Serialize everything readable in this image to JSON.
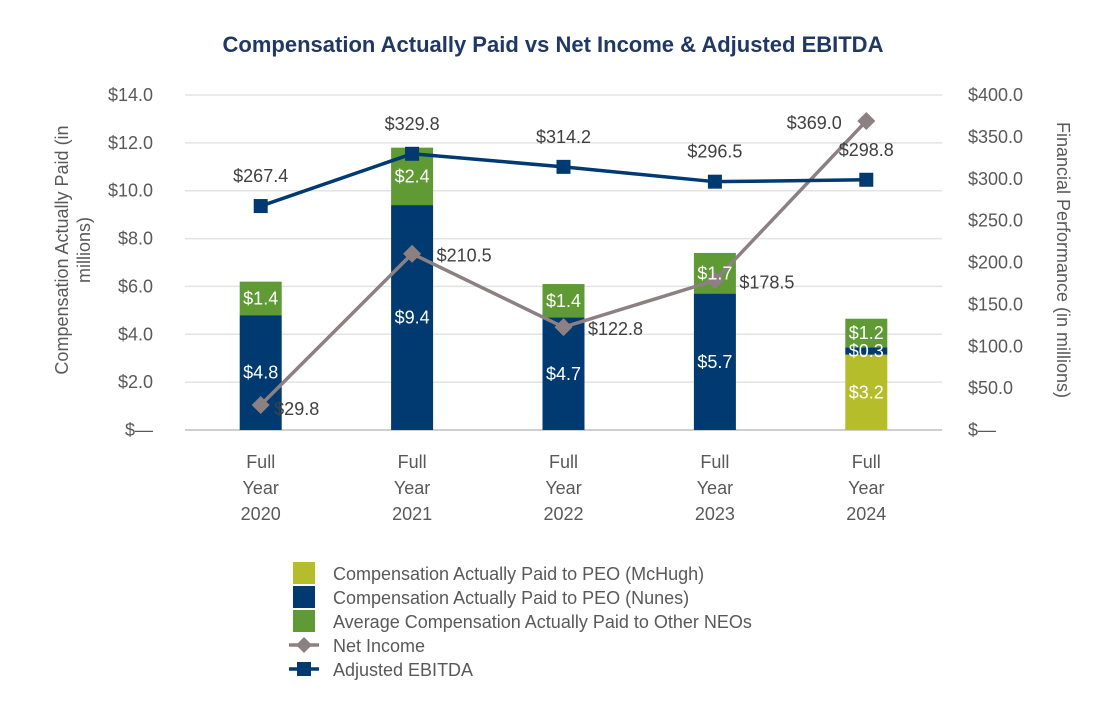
{
  "chart_data": {
    "type": "bar",
    "title": "Compensation Actually Paid vs Net Income & Adjusted EBITDA",
    "categories": [
      [
        "Full",
        "Year",
        "2020"
      ],
      [
        "Full",
        "Year",
        "2021"
      ],
      [
        "Full",
        "Year",
        "2022"
      ],
      [
        "Full",
        "Year",
        "2023"
      ],
      [
        "Full",
        "Year",
        "2024"
      ]
    ],
    "ylabel_left": [
      "Compensation Actually Paid (in",
      "millions)"
    ],
    "ylabel_right": "Financial Performance (in millions)",
    "ylim_left": [
      0,
      14
    ],
    "ylim_right": [
      0,
      400
    ],
    "yticks_left": [
      "$—",
      "$2.0",
      "$4.0",
      "$6.0",
      "$8.0",
      "$10.0",
      "$12.0",
      "$14.0"
    ],
    "yticks_right": [
      "$—",
      "$50.0",
      "$100.0",
      "$150.0",
      "$200.0",
      "$250.0",
      "$300.0",
      "$350.0",
      "$400.0"
    ],
    "grid": true,
    "legend_position": "bottom",
    "stack_series": [
      {
        "name": "Compensation Actually Paid to PEO (McHugh)",
        "color": "#b5bd2a",
        "values": [
          0,
          0,
          0,
          0,
          3.15
        ],
        "labels": [
          "",
          "",
          "",
          "",
          "$3.2"
        ]
      },
      {
        "name": "Compensation Actually Paid to PEO (Nunes)",
        "color": "#003a70",
        "values": [
          4.8,
          9.4,
          4.7,
          5.7,
          0.3
        ],
        "labels": [
          "$4.8",
          "$9.4",
          "$4.7",
          "$5.7",
          "$0.3"
        ]
      },
      {
        "name": "Average Compensation Actually Paid to Other NEOs",
        "color": "#5f9a34",
        "values": [
          1.4,
          2.4,
          1.4,
          1.7,
          1.2
        ],
        "labels": [
          "$1.4",
          "$2.4",
          "$1.4",
          "$1.7",
          "$1.2"
        ]
      }
    ],
    "line_series": [
      {
        "name": "Net Income",
        "axis": "right",
        "color": "#8c8083",
        "marker": "diamond",
        "values": [
          29.8,
          210.5,
          122.8,
          178.5,
          369.0
        ],
        "labels": [
          "$29.8",
          "$210.5",
          "$122.8",
          "$178.5",
          "$369.0"
        ]
      },
      {
        "name": "Adjusted EBITDA",
        "axis": "right",
        "color": "#003a70",
        "marker": "square",
        "values": [
          267.4,
          329.8,
          314.2,
          296.5,
          298.8
        ],
        "labels": [
          "$267.4",
          "$329.8",
          "$314.2",
          "$296.5",
          "$298.8"
        ]
      }
    ],
    "legend": [
      "Compensation Actually Paid to PEO (McHugh)",
      "Compensation Actually Paid to PEO (Nunes)",
      "Average Compensation Actually Paid to Other NEOs",
      "Net Income",
      "Adjusted EBITDA"
    ]
  }
}
